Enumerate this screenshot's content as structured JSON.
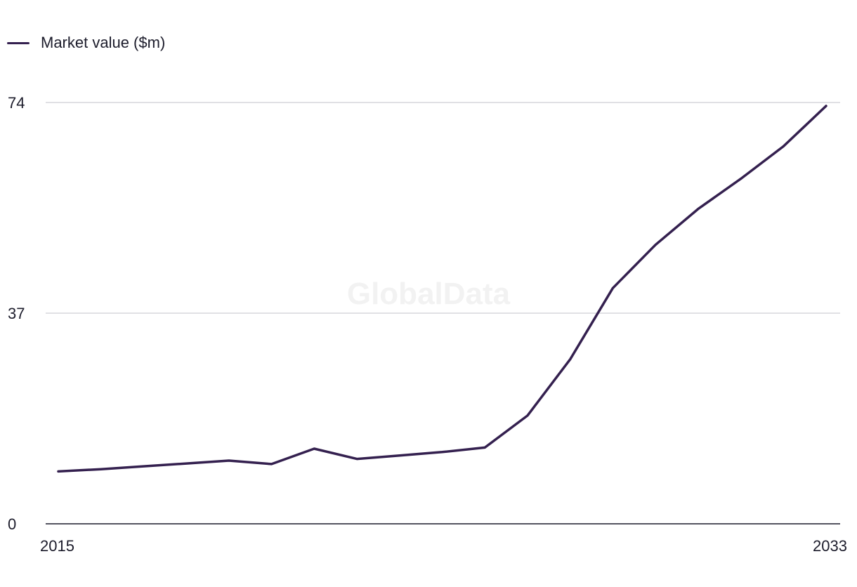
{
  "watermark": "GlobalData",
  "chart_data": {
    "type": "line",
    "title": "",
    "xlabel": "",
    "ylabel": "",
    "x": [
      2015,
      2016,
      2017,
      2018,
      2019,
      2020,
      2021,
      2022,
      2023,
      2024,
      2025,
      2026,
      2027,
      2028,
      2029,
      2030,
      2031,
      2032,
      2033
    ],
    "x_tick_labels": [
      "2015",
      "2033"
    ],
    "y_ticks": [
      0,
      37,
      74
    ],
    "y_tick_labels": [
      "0",
      "37",
      "74"
    ],
    "ylim": [
      0,
      74
    ],
    "xlim": [
      2015,
      2033
    ],
    "grid": true,
    "legend_position": "top-left",
    "series": [
      {
        "name": "Market value ($m)",
        "color": "#34204f",
        "values": [
          9.2,
          9.6,
          10.1,
          10.6,
          11.1,
          10.5,
          13.2,
          11.4,
          12.0,
          12.6,
          13.4,
          19.0,
          28.9,
          41.4,
          49.0,
          55.3,
          60.6,
          66.3,
          73.4
        ]
      }
    ]
  }
}
